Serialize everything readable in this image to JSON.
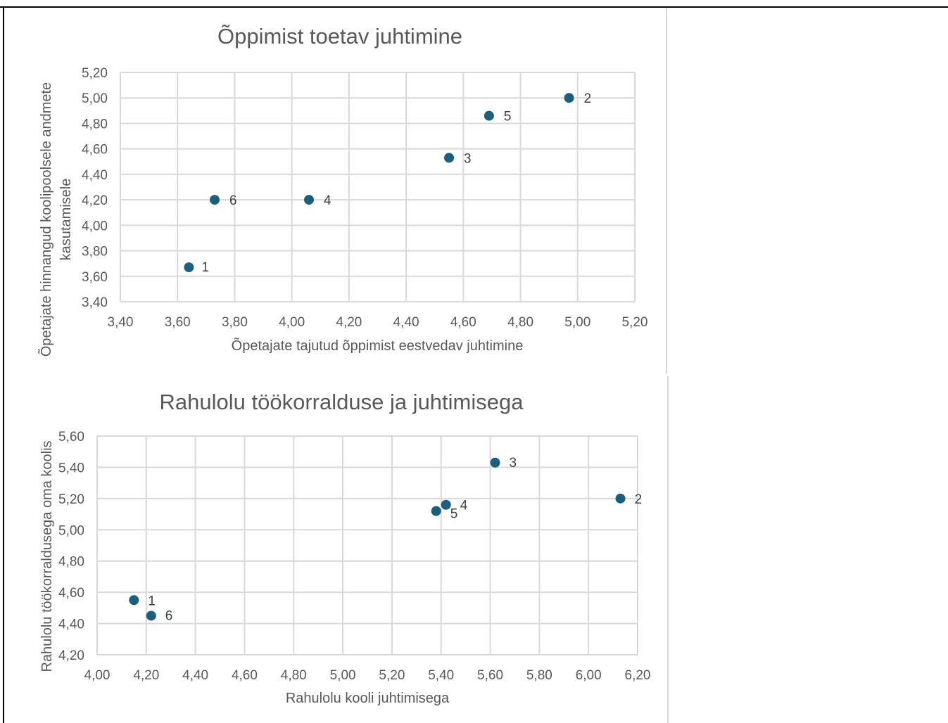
{
  "chart_data": [
    {
      "type": "scatter",
      "title": "Õppimist toetav juhtimine",
      "xlabel": "Õpetajate tajutud õppimist eestvedav juhtimine",
      "ylabel_lines": [
        "Õpetajate hinnangud koolipoolsele andmete",
        "kasutamisele"
      ],
      "xlim": [
        3.4,
        5.2
      ],
      "ylim": [
        3.4,
        5.2
      ],
      "xticks": [
        "3,40",
        "3,60",
        "3,80",
        "4,00",
        "4,20",
        "4,40",
        "4,60",
        "4,80",
        "5,00",
        "5,20"
      ],
      "yticks": [
        "3,40",
        "3,60",
        "3,80",
        "4,00",
        "4,20",
        "4,40",
        "4,60",
        "4,80",
        "5,00",
        "5,20"
      ],
      "grid": true,
      "color": "#1a5f7e",
      "points": [
        {
          "label": "1",
          "x": 3.64,
          "y": 3.67
        },
        {
          "label": "2",
          "x": 4.97,
          "y": 5.0
        },
        {
          "label": "3",
          "x": 4.55,
          "y": 4.53
        },
        {
          "label": "4",
          "x": 4.06,
          "y": 4.2
        },
        {
          "label": "5",
          "x": 4.69,
          "y": 4.86
        },
        {
          "label": "6",
          "x": 3.73,
          "y": 4.2
        }
      ]
    },
    {
      "type": "scatter",
      "title": "Rahulolu töökorralduse ja juhtimisega",
      "xlabel": "Rahulolu kooli juhtimisega",
      "ylabel_lines": [
        "Rahulolu töökorraldusega oma koolis"
      ],
      "xlim": [
        4.0,
        6.2
      ],
      "ylim": [
        4.2,
        5.6
      ],
      "xticks": [
        "4,00",
        "4,20",
        "4,40",
        "4,60",
        "4,80",
        "5,00",
        "5,20",
        "5,40",
        "5,60",
        "5,80",
        "6,00",
        "6,20"
      ],
      "yticks": [
        "4,20",
        "4,40",
        "4,60",
        "4,80",
        "5,00",
        "5,20",
        "5,40",
        "5,60"
      ],
      "grid": true,
      "color": "#1a5f7e",
      "points": [
        {
          "label": "1",
          "x": 4.15,
          "y": 4.55
        },
        {
          "label": "2",
          "x": 6.13,
          "y": 5.2
        },
        {
          "label": "3",
          "x": 5.62,
          "y": 5.43
        },
        {
          "label": "4",
          "x": 5.42,
          "y": 5.16
        },
        {
          "label": "5",
          "x": 5.38,
          "y": 5.12
        },
        {
          "label": "6",
          "x": 4.22,
          "y": 4.45
        }
      ]
    }
  ]
}
